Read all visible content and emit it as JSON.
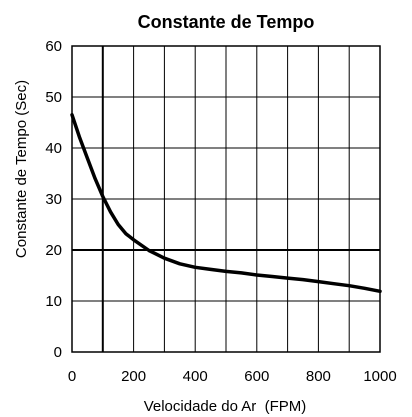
{
  "chart_data": {
    "type": "line",
    "title": "Constante de Tempo",
    "xlabel": "Velocidade do Ar  (FPM)",
    "ylabel": "Constante de Tempo (Sec)",
    "xlim": [
      0,
      1000
    ],
    "ylim": [
      0,
      60
    ],
    "x_ticks": [
      0,
      200,
      400,
      600,
      800,
      1000
    ],
    "y_ticks": [
      0,
      10,
      20,
      30,
      40,
      50,
      60
    ],
    "grid": true,
    "x_grid_step": 100,
    "y_grid_step": 10,
    "reference_lines": {
      "x": 100,
      "y": 20
    },
    "legend": "none",
    "colors": {
      "line": "#000000",
      "grid": "#000000",
      "background": "#ffffff"
    },
    "series": [
      {
        "x": [
          0,
          25,
          50,
          75,
          100,
          125,
          150,
          175,
          200,
          250,
          300,
          350,
          400,
          450,
          500,
          550,
          600,
          650,
          700,
          750,
          800,
          850,
          900,
          950,
          1000
        ],
        "y": [
          46.5,
          42,
          38,
          34,
          30.5,
          27.5,
          25,
          23.2,
          22,
          19.9,
          18.4,
          17.3,
          16.6,
          16.2,
          15.8,
          15.5,
          15.1,
          14.8,
          14.5,
          14.2,
          13.8,
          13.4,
          13.0,
          12.5,
          11.9
        ]
      }
    ]
  }
}
